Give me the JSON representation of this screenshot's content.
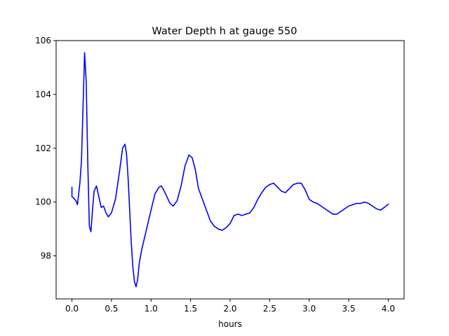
{
  "chart_data": {
    "type": "line",
    "title": "Water Depth h at gauge 550",
    "xlabel": "hours",
    "ylabel": "",
    "xlim": [
      -0.2,
      4.2
    ],
    "ylim": [
      96.4,
      106.0
    ],
    "xticks": [
      0.0,
      0.5,
      1.0,
      1.5,
      2.0,
      2.5,
      3.0,
      3.5,
      4.0
    ],
    "xtick_labels": [
      "0.0",
      "0.5",
      "1.0",
      "1.5",
      "2.0",
      "2.5",
      "3.0",
      "3.5",
      "4.0"
    ],
    "yticks": [
      98,
      100,
      102,
      104,
      106
    ],
    "ytick_labels": [
      "98",
      "100",
      "102",
      "104",
      "106"
    ],
    "grid": false,
    "series": [
      {
        "color": "#0000ff",
        "x": [
          0.0,
          0.0,
          0.02,
          0.05,
          0.07,
          0.1,
          0.12,
          0.14,
          0.16,
          0.18,
          0.2,
          0.22,
          0.24,
          0.26,
          0.28,
          0.31,
          0.34,
          0.37,
          0.4,
          0.43,
          0.46,
          0.5,
          0.55,
          0.6,
          0.64,
          0.67,
          0.69,
          0.71,
          0.73,
          0.75,
          0.77,
          0.79,
          0.81,
          0.83,
          0.85,
          0.88,
          0.92,
          0.96,
          1.0,
          1.05,
          1.1,
          1.13,
          1.16,
          1.2,
          1.24,
          1.28,
          1.33,
          1.38,
          1.43,
          1.48,
          1.52,
          1.56,
          1.6,
          1.65,
          1.7,
          1.75,
          1.8,
          1.85,
          1.9,
          1.95,
          2.0,
          2.05,
          2.1,
          2.15,
          2.2,
          2.25,
          2.3,
          2.35,
          2.4,
          2.45,
          2.5,
          2.55,
          2.6,
          2.65,
          2.7,
          2.75,
          2.8,
          2.85,
          2.9,
          2.95,
          3.0,
          3.05,
          3.1,
          3.15,
          3.2,
          3.25,
          3.3,
          3.35,
          3.4,
          3.45,
          3.5,
          3.55,
          3.6,
          3.65,
          3.7,
          3.75,
          3.8,
          3.85,
          3.9,
          3.95,
          4.0
        ],
        "y": [
          100.55,
          100.2,
          100.15,
          100.05,
          99.9,
          100.7,
          101.5,
          103.5,
          105.55,
          104.5,
          101.5,
          99.1,
          98.9,
          99.7,
          100.4,
          100.6,
          100.2,
          99.8,
          99.85,
          99.6,
          99.45,
          99.6,
          100.1,
          101.1,
          102.0,
          102.15,
          101.8,
          100.9,
          99.7,
          98.5,
          97.6,
          97.05,
          96.85,
          97.1,
          97.7,
          98.2,
          98.7,
          99.2,
          99.7,
          100.3,
          100.55,
          100.6,
          100.45,
          100.2,
          99.95,
          99.85,
          100.05,
          100.6,
          101.35,
          101.75,
          101.65,
          101.2,
          100.5,
          100.1,
          99.7,
          99.3,
          99.1,
          99.0,
          98.95,
          99.05,
          99.2,
          99.5,
          99.55,
          99.5,
          99.55,
          99.6,
          99.8,
          100.1,
          100.35,
          100.55,
          100.65,
          100.7,
          100.55,
          100.4,
          100.35,
          100.5,
          100.65,
          100.7,
          100.7,
          100.45,
          100.1,
          100.0,
          99.95,
          99.85,
          99.75,
          99.65,
          99.55,
          99.55,
          99.65,
          99.75,
          99.85,
          99.9,
          99.95,
          99.95,
          100.0,
          99.95,
          99.85,
          99.75,
          99.7,
          99.8,
          99.92
        ]
      }
    ]
  }
}
